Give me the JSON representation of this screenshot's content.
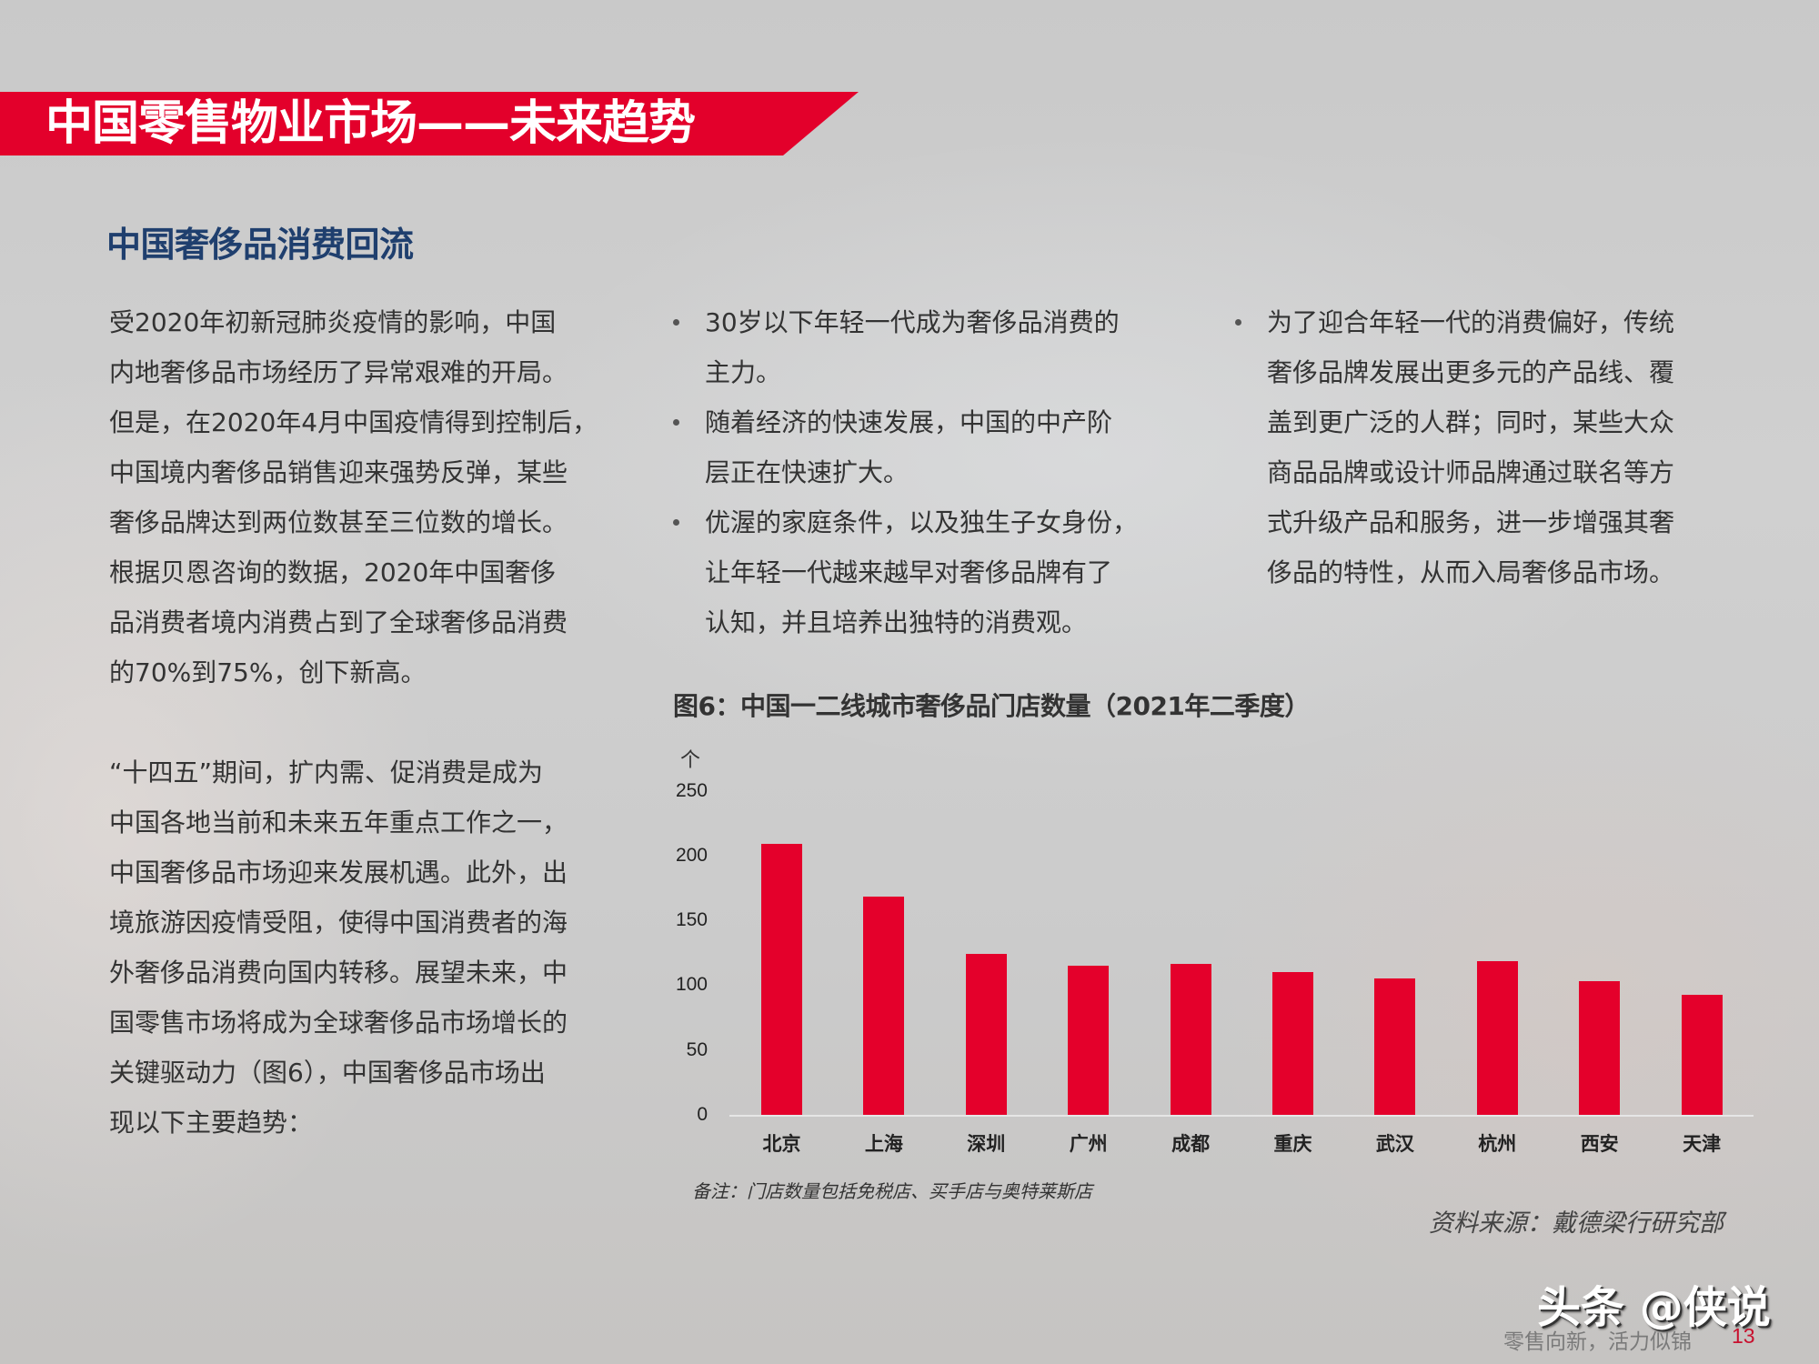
{
  "header": {
    "title": "中国零售物业市场——未来趋势",
    "accent_color": "#e3002b"
  },
  "section": {
    "title": "中国奢侈品消费回流",
    "title_color": "#1f3f6e"
  },
  "left_column": {
    "paragraph1": [
      "受2020年初新冠肺炎疫情的影响，中国",
      "内地奢侈品市场经历了异常艰难的开局。",
      "但是，在2020年4月中国疫情得到控制后，",
      "中国境内奢侈品销售迎来强势反弹，某些",
      "奢侈品牌达到两位数甚至三位数的增长。",
      "根据贝恩咨询的数据，2020年中国奢侈",
      "品消费者境内消费占到了全球奢侈品消费",
      "的70%到75%，创下新高。"
    ],
    "paragraph2": [
      "“十四五”期间，扩内需、促消费是成为",
      "中国各地当前和未来五年重点工作之一，",
      "中国奢侈品市场迎来发展机遇。此外，出",
      "境旅游因疫情受阻，使得中国消费者的海",
      "外奢侈品消费向国内转移。展望未来，中",
      "国零售市场将成为全球奢侈品市场增长的",
      "关键驱动力（图6），中国奢侈品市场出",
      "现以下主要趋势："
    ]
  },
  "middle_column": {
    "bullets": [
      {
        "lines": [
          "30岁以下年轻一代成为奢侈品消费的",
          "主力。"
        ]
      },
      {
        "lines": [
          "随着经济的快速发展，中国的中产阶",
          "层正在快速扩大。"
        ]
      },
      {
        "lines": [
          "优渥的家庭条件，以及独生子女身份，",
          "让年轻一代越来越早对奢侈品牌有了",
          "认知，并且培养出独特的消费观。"
        ]
      }
    ]
  },
  "right_column": {
    "bullets": [
      {
        "lines": [
          "为了迎合年轻一代的消费偏好，传统",
          "奢侈品牌发展出更多元的产品线、覆",
          "盖到更广泛的人群；同时，某些大众",
          "商品品牌或设计师品牌通过联名等方",
          "式升级产品和服务，进一步增强其奢",
          "侈品的特性，从而入局奢侈品市场。"
        ]
      }
    ]
  },
  "chart_data": {
    "type": "bar",
    "title": "图6：中国一二线城市奢侈品门店数量（2021年二季度）",
    "ylabel": "个",
    "xlabel": "",
    "categories": [
      "北京",
      "上海",
      "深圳",
      "广州",
      "成都",
      "重庆",
      "武汉",
      "杭州",
      "西安",
      "天津"
    ],
    "values": [
      210,
      169,
      125,
      116,
      117,
      111,
      106,
      119,
      104,
      93
    ],
    "ylim": [
      0,
      250
    ],
    "yticks": [
      0,
      50,
      100,
      150,
      200,
      250
    ],
    "bar_color": "#e4002b",
    "grid": false,
    "legend": null,
    "note": "备注：门店数量包括免税店、买手店与奥特莱斯店",
    "source": "资料来源：戴德梁行研究部"
  },
  "watermark": {
    "text": "头条 @侠说"
  },
  "footer": {
    "slogan": "零售向新，活力似锦",
    "page_number": "13",
    "page_number_color": "#c8102e"
  }
}
